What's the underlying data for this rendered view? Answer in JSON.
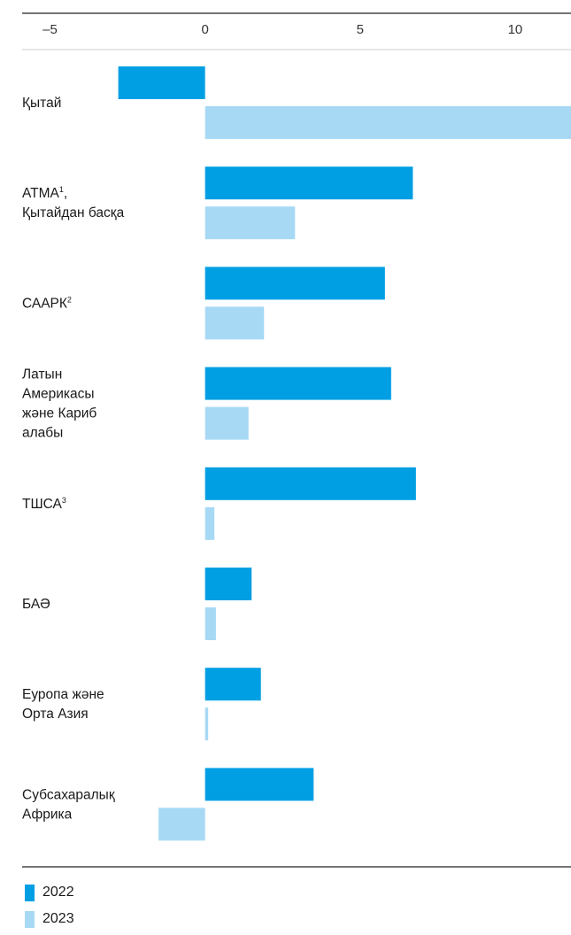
{
  "chart_data": {
    "type": "bar",
    "orientation": "horizontal",
    "categories": [
      {
        "lines": [
          "Қытай"
        ],
        "sup": ""
      },
      {
        "lines": [
          "АТМА",
          "Қытайдан басқа"
        ],
        "sup": "1",
        "sup_suffix": ","
      },
      {
        "lines": [
          "СААРК"
        ],
        "sup": "2"
      },
      {
        "lines": [
          "Латын",
          "Америкасы",
          "және Кариб",
          "алабы"
        ],
        "sup": ""
      },
      {
        "lines": [
          "ТШСА"
        ],
        "sup": "3"
      },
      {
        "lines": [
          "БАӘ"
        ],
        "sup": ""
      },
      {
        "lines": [
          "Еуропа және",
          "Орта Азия"
        ],
        "sup": ""
      },
      {
        "lines": [
          "Субсахаралық",
          "Африка"
        ],
        "sup": ""
      }
    ],
    "series": [
      {
        "name": "2022",
        "color": "#009fe3",
        "values": [
          -2.8,
          6.7,
          5.8,
          6.0,
          6.8,
          1.5,
          1.8,
          3.5
        ]
      },
      {
        "name": "2023",
        "color": "#a7d9f5",
        "values": [
          12.0,
          2.9,
          1.9,
          1.4,
          0.3,
          0.35,
          0.1,
          -1.5
        ]
      }
    ],
    "x_ticks": [
      {
        "value": -5,
        "label": "–5"
      },
      {
        "value": 0,
        "label": "0"
      },
      {
        "value": 5,
        "label": "5"
      },
      {
        "value": 10,
        "label": "10"
      }
    ],
    "xlim": [
      -5.9,
      11.8
    ],
    "axis_position": "top",
    "legend_position": "bottom-left",
    "grid": false
  }
}
